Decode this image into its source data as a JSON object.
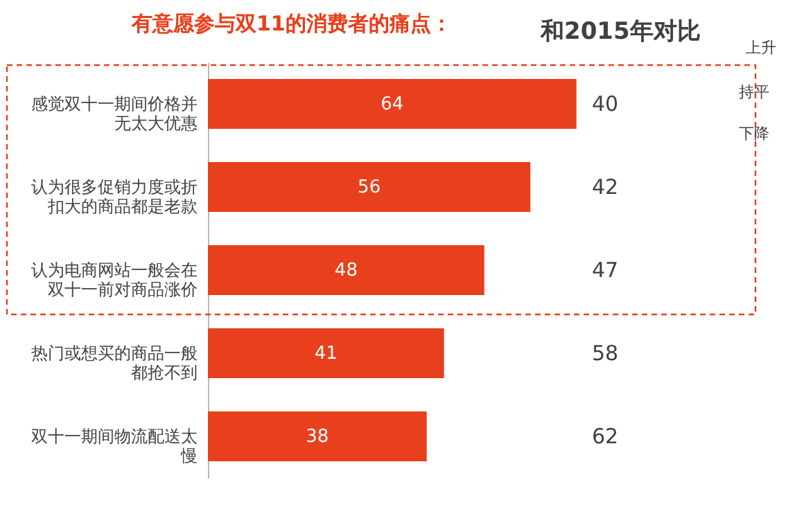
{
  "chart_data": {
    "type": "bar",
    "orientation": "horizontal",
    "title": "有意愿参与双11的消费者的痛点：",
    "categories": [
      "感觉双十一期间价格并无太大优惠",
      "认为很多促销力度或折扣大的商品都是老款",
      "认为电商网站一般会在双十一前对商品涨价",
      "热门或想买的商品一般都抢不到",
      "双十一期间物流配送太慢"
    ],
    "values": [
      64,
      56,
      48,
      41,
      38
    ],
    "color": "#e8401c",
    "data_labels": true,
    "tick_labels": "y",
    "grid": false,
    "annotations": [
      "和2015年对比",
      "上升",
      "持平",
      "下降",
      "40",
      "42",
      "47",
      "58",
      "62"
    ]
  }
}
